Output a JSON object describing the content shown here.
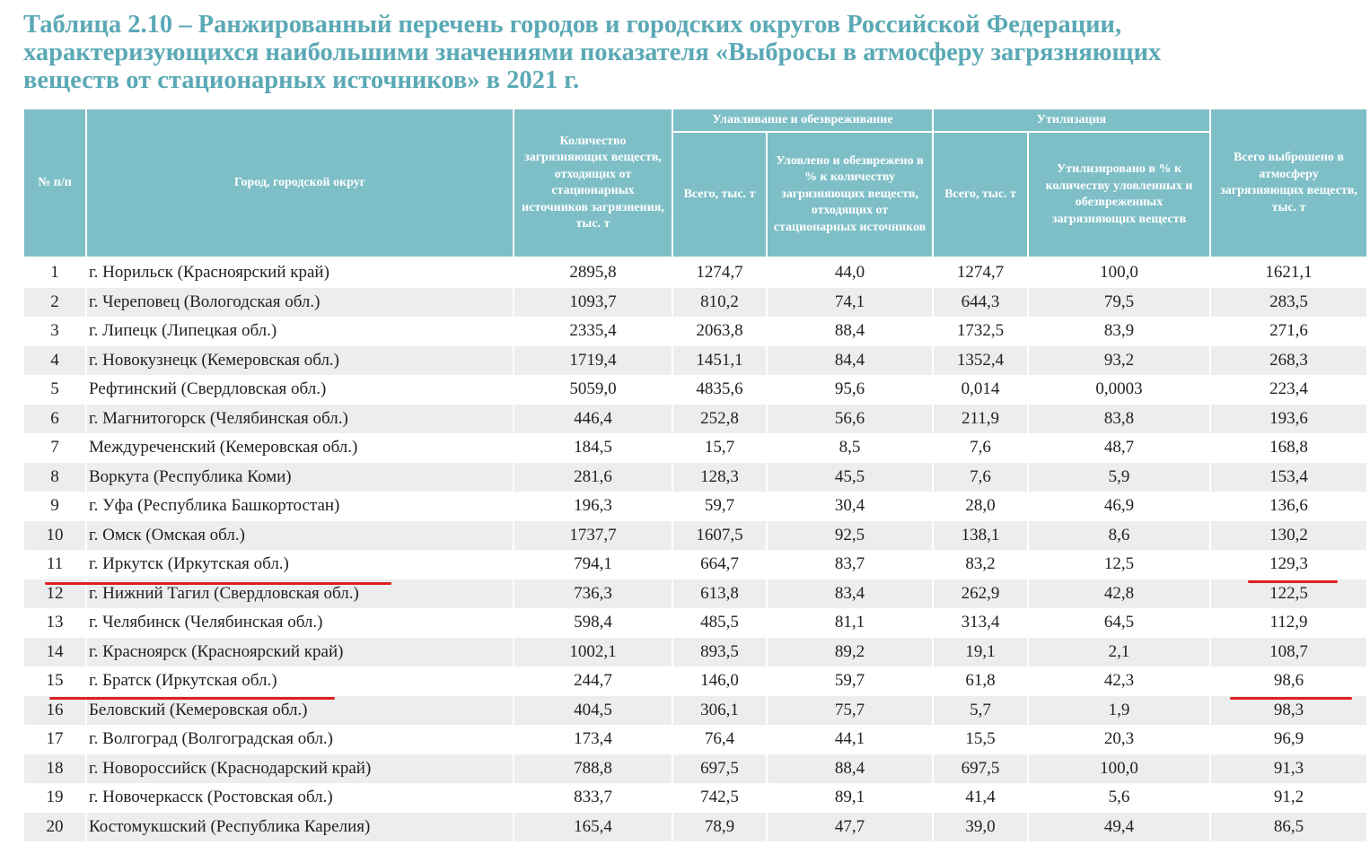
{
  "header": {
    "title_lines": [
      "Таблица 2.10 – Ранжированный перечень городов и городских округов Российской Федерации,",
      "характеризующихся наибольшими значениями показателя «Выбросы в атмосферу загрязняющих",
      "веществ от стационарных источников» в 2021 г."
    ]
  },
  "table": {
    "headers": {
      "num": "№ п/п",
      "city": "Город, городской округ",
      "amount": "Количество загрязняющих веществ, отходящих от стационарных источников загрязнения, тыс. т",
      "capture_group": "Улавливание и обезвреживание",
      "capture_total": "Всего, тыс. т",
      "capture_pct": "Уловлено и обезврежено в % к количеству загрязняющих веществ, отходящих от стационарных источников",
      "util_group": "Утилизация",
      "util_total": "Всего, тыс. т",
      "util_pct": "Утилизировано в % к количеству уловленных и обезвреженных загрязняющих веществ",
      "emitted": "Всего выброшено в атмосферу загрязняющих веществ, тыс. т"
    },
    "rows": [
      [
        "1",
        "г. Норильск (Красноярский край)",
        "2895,8",
        "1274,7",
        "44,0",
        "1274,7",
        "100,0",
        "1621,1"
      ],
      [
        "2",
        "г. Череповец (Вологодская обл.)",
        "1093,7",
        "810,2",
        "74,1",
        "644,3",
        "79,5",
        "283,5"
      ],
      [
        "3",
        "г. Липецк (Липецкая обл.)",
        "2335,4",
        "2063,8",
        "88,4",
        "1732,5",
        "83,9",
        "271,6"
      ],
      [
        "4",
        "г. Новокузнецк (Кемеровская обл.)",
        "1719,4",
        "1451,1",
        "84,4",
        "1352,4",
        "93,2",
        "268,3"
      ],
      [
        "5",
        "Рефтинский (Свердловская обл.)",
        "5059,0",
        "4835,6",
        "95,6",
        "0,014",
        "0,0003",
        "223,4"
      ],
      [
        "6",
        "г. Магнитогорск (Челябинская обл.)",
        "446,4",
        "252,8",
        "56,6",
        "211,9",
        "83,8",
        "193,6"
      ],
      [
        "7",
        "Междуреченский (Кемеровская обл.)",
        "184,5",
        "15,7",
        "8,5",
        "7,6",
        "48,7",
        "168,8"
      ],
      [
        "8",
        "Воркута (Республика Коми)",
        "281,6",
        "128,3",
        "45,5",
        "7,6",
        "5,9",
        "153,4"
      ],
      [
        "9",
        "г. Уфа (Республика Башкортостан)",
        "196,3",
        "59,7",
        "30,4",
        "28,0",
        "46,9",
        "136,6"
      ],
      [
        "10",
        "г. Омск (Омская обл.)",
        "1737,7",
        "1607,5",
        "92,5",
        "138,1",
        "8,6",
        "130,2"
      ],
      [
        "11",
        "г. Иркутск (Иркутская обл.)",
        "794,1",
        "664,7",
        "83,7",
        "83,2",
        "12,5",
        "129,3"
      ],
      [
        "12",
        "г. Нижний Тагил (Свердловская обл.)",
        "736,3",
        "613,8",
        "83,4",
        "262,9",
        "42,8",
        "122,5"
      ],
      [
        "13",
        "г. Челябинск (Челябинская обл.)",
        "598,4",
        "485,5",
        "81,1",
        "313,4",
        "64,5",
        "112,9"
      ],
      [
        "14",
        "г. Красноярск (Красноярский край)",
        "1002,1",
        "893,5",
        "89,2",
        "19,1",
        "2,1",
        "108,7"
      ],
      [
        "15",
        "г. Братск (Иркутская обл.)",
        "244,7",
        "146,0",
        "59,7",
        "61,8",
        "42,3",
        "98,6"
      ],
      [
        "16",
        "Беловский (Кемеровская обл.)",
        "404,5",
        "306,1",
        "75,7",
        "5,7",
        "1,9",
        "98,3"
      ],
      [
        "17",
        "г. Волгоград (Волгоградская обл.)",
        "173,4",
        "76,4",
        "44,1",
        "15,5",
        "20,3",
        "96,9"
      ],
      [
        "18",
        "г. Новороссийск (Краснодарский край)",
        "788,8",
        "697,5",
        "88,4",
        "697,5",
        "100,0",
        "91,3"
      ],
      [
        "19",
        "г. Новочеркасск (Ростовская обл.)",
        "833,7",
        "742,5",
        "89,1",
        "41,4",
        "5,6",
        "91,2"
      ],
      [
        "20",
        "Костомукшский (Республика Карелия)",
        "165,4",
        "78,9",
        "47,7",
        "39,0",
        "49,4",
        "86,5"
      ]
    ]
  }
}
